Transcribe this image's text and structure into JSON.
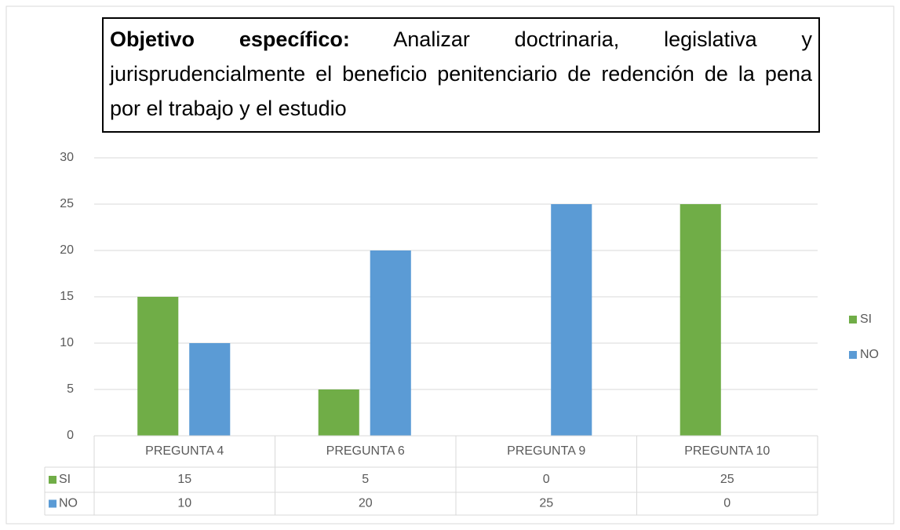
{
  "chart_data": {
    "type": "bar",
    "title_label": "Objetivo específico:",
    "title": "Analizar doctrinaria, legislativa y jurisprudencialmente el beneficio penitenciario de redención de la pena por el trabajo y el estudio",
    "categories": [
      "PREGUNTA 4",
      "PREGUNTA 6",
      "PREGUNTA 9",
      "PREGUNTA 10"
    ],
    "series": [
      {
        "name": "SI",
        "color": "#70ad47",
        "values": [
          15,
          5,
          0,
          25
        ]
      },
      {
        "name": "NO",
        "color": "#5b9bd5",
        "values": [
          10,
          20,
          25,
          0
        ]
      }
    ],
    "ylim": [
      0,
      30
    ],
    "yticks": [
      0,
      5,
      10,
      15,
      20,
      25,
      30
    ],
    "grid": true,
    "legend": "right",
    "data_table": true
  }
}
